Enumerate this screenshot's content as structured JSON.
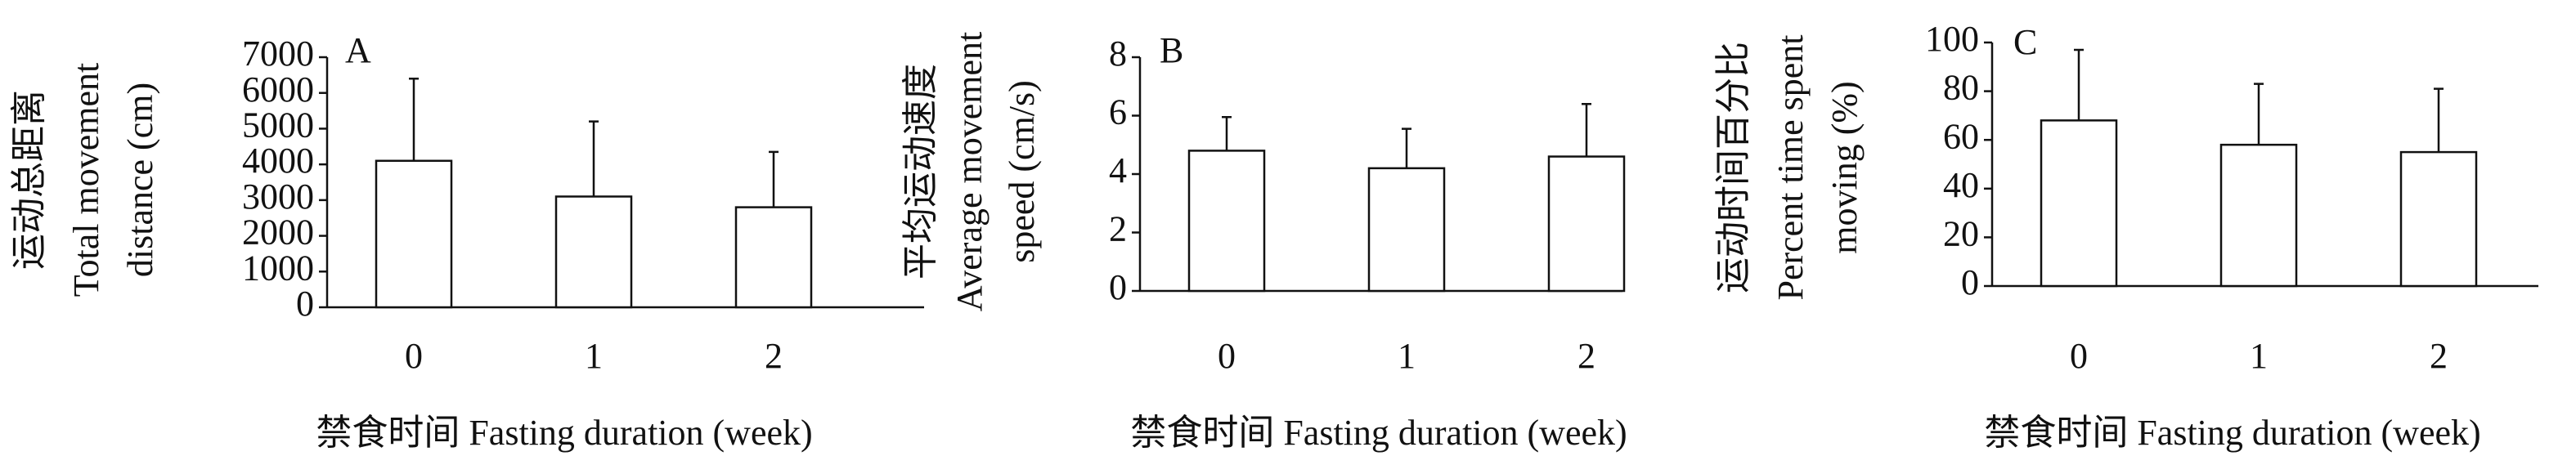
{
  "chart_data": [
    {
      "type": "bar",
      "panel_label": "A",
      "y_label": [
        "运动总距离",
        "Total movement",
        "distance (cm)"
      ],
      "x_label": "禁食时间 Fasting duration (week)",
      "categories": [
        "0",
        "1",
        "2"
      ],
      "values": [
        4100,
        3100,
        2800
      ],
      "errors": [
        2300,
        2100,
        1550
      ],
      "color": "#ffffff",
      "ylim": [
        0,
        7000
      ],
      "yticks": [
        0,
        1000,
        2000,
        3000,
        4000,
        5000,
        6000,
        7000
      ]
    },
    {
      "type": "bar",
      "panel_label": "B",
      "y_label": [
        "平均运动速度",
        "Average movement",
        "speed (cm/s)"
      ],
      "x_label": "禁食时间 Fasting duration (week)",
      "categories": [
        "0",
        "1",
        "2"
      ],
      "values": [
        4.8,
        4.2,
        4.6
      ],
      "errors": [
        1.15,
        1.35,
        1.8
      ],
      "color": "#ffffff",
      "ylim": [
        0,
        8
      ],
      "yticks": [
        0,
        2,
        4,
        6,
        8
      ]
    },
    {
      "type": "bar",
      "panel_label": "C",
      "y_label": [
        "运动时间百分比",
        "Percent time spent",
        "moving (%)"
      ],
      "x_label": "禁食时间 Fasting duration (week)",
      "categories": [
        "0",
        "1",
        "2"
      ],
      "values": [
        68,
        58,
        55
      ],
      "errors": [
        29,
        25,
        26
      ],
      "color": "#ffffff",
      "ylim": [
        0,
        100
      ],
      "yticks": [
        0,
        20,
        40,
        60,
        80,
        100
      ]
    }
  ]
}
